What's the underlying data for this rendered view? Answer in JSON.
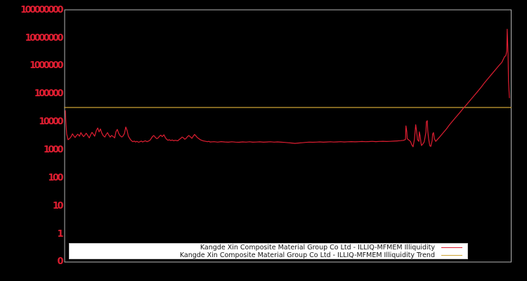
{
  "window": {
    "background": "#000000",
    "frame_color": "#b3b3b3"
  },
  "chart_data": {
    "type": "line",
    "title": "",
    "xlabel": "",
    "ylabel": "",
    "x_axis": {
      "tick_labels": [],
      "note_visible": "no x tick labels shown"
    },
    "y_axis": {
      "scale": "log",
      "color": "#de1e31",
      "tick_labels": [
        "100000000",
        "10000000",
        "1000000",
        "100000",
        "10000",
        "1000",
        "100",
        "10",
        "1",
        "0"
      ],
      "tick_values": [
        100000000,
        10000000,
        1000000,
        100000,
        10000,
        1000,
        100,
        10,
        1,
        0
      ]
    },
    "grid": false,
    "legend_position": "lower center",
    "series": [
      {
        "name": "Kangde Xin Composite Material Group Co Ltd - ILLIQ-MFMEM Illiquidity",
        "color": "#de1e31",
        "points": [
          [
            0,
            26000
          ],
          [
            0.001,
            12000
          ],
          [
            0.002,
            6500
          ],
          [
            0.003,
            3800
          ],
          [
            0.005,
            2800
          ],
          [
            0.006,
            2400
          ],
          [
            0.009,
            2600
          ],
          [
            0.013,
            3100
          ],
          [
            0.016,
            3900
          ],
          [
            0.019,
            3300
          ],
          [
            0.022,
            2900
          ],
          [
            0.025,
            3400
          ],
          [
            0.028,
            3800
          ],
          [
            0.032,
            3200
          ],
          [
            0.035,
            4300
          ],
          [
            0.038,
            3600
          ],
          [
            0.041,
            3100
          ],
          [
            0.044,
            3500
          ],
          [
            0.047,
            4100
          ],
          [
            0.051,
            3300
          ],
          [
            0.054,
            2800
          ],
          [
            0.057,
            3600
          ],
          [
            0.06,
            4400
          ],
          [
            0.063,
            3800
          ],
          [
            0.066,
            3200
          ],
          [
            0.07,
            5200
          ],
          [
            0.073,
            6300
          ],
          [
            0.076,
            4600
          ],
          [
            0.079,
            5800
          ],
          [
            0.082,
            4200
          ],
          [
            0.085,
            3400
          ],
          [
            0.089,
            3000
          ],
          [
            0.092,
            3700
          ],
          [
            0.095,
            4300
          ],
          [
            0.098,
            3500
          ],
          [
            0.101,
            3000
          ],
          [
            0.104,
            3400
          ],
          [
            0.108,
            3100
          ],
          [
            0.111,
            2800
          ],
          [
            0.114,
            4600
          ],
          [
            0.117,
            5600
          ],
          [
            0.12,
            4100
          ],
          [
            0.123,
            3400
          ],
          [
            0.127,
            3000
          ],
          [
            0.13,
            3300
          ],
          [
            0.133,
            4000
          ],
          [
            0.136,
            6800
          ],
          [
            0.139,
            5200
          ],
          [
            0.142,
            3200
          ],
          [
            0.146,
            2500
          ],
          [
            0.149,
            2200
          ],
          [
            0.152,
            2050
          ],
          [
            0.155,
            2150
          ],
          [
            0.158,
            2000
          ],
          [
            0.161,
            2100
          ],
          [
            0.165,
            1950
          ],
          [
            0.168,
            2050
          ],
          [
            0.171,
            2150
          ],
          [
            0.174,
            2000
          ],
          [
            0.177,
            2100
          ],
          [
            0.18,
            2200
          ],
          [
            0.184,
            2050
          ],
          [
            0.187,
            2150
          ],
          [
            0.19,
            2250
          ],
          [
            0.193,
            2600
          ],
          [
            0.196,
            3100
          ],
          [
            0.199,
            3400
          ],
          [
            0.203,
            2900
          ],
          [
            0.206,
            2600
          ],
          [
            0.209,
            2800
          ],
          [
            0.212,
            3200
          ],
          [
            0.215,
            3500
          ],
          [
            0.218,
            3100
          ],
          [
            0.222,
            3600
          ],
          [
            0.225,
            2900
          ],
          [
            0.228,
            2500
          ],
          [
            0.231,
            2300
          ],
          [
            0.234,
            2400
          ],
          [
            0.237,
            2250
          ],
          [
            0.241,
            2350
          ],
          [
            0.244,
            2200
          ],
          [
            0.247,
            2300
          ],
          [
            0.25,
            2250
          ],
          [
            0.253,
            2200
          ],
          [
            0.256,
            2400
          ],
          [
            0.26,
            2700
          ],
          [
            0.263,
            3000
          ],
          [
            0.266,
            2800
          ],
          [
            0.269,
            2500
          ],
          [
            0.272,
            2700
          ],
          [
            0.275,
            3100
          ],
          [
            0.278,
            3400
          ],
          [
            0.282,
            3000
          ],
          [
            0.285,
            2700
          ],
          [
            0.288,
            3200
          ],
          [
            0.291,
            3700
          ],
          [
            0.294,
            3300
          ],
          [
            0.297,
            2900
          ],
          [
            0.301,
            2600
          ],
          [
            0.304,
            2400
          ],
          [
            0.307,
            2300
          ],
          [
            0.31,
            2200
          ],
          [
            0.313,
            2150
          ],
          [
            0.316,
            2100
          ],
          [
            0.32,
            2050
          ],
          [
            0.323,
            2100
          ],
          [
            0.326,
            2000
          ],
          [
            0.335,
            2050
          ],
          [
            0.343,
            1980
          ],
          [
            0.351,
            2060
          ],
          [
            0.359,
            2000
          ],
          [
            0.367,
            1960
          ],
          [
            0.375,
            2030
          ],
          [
            0.383,
            1980
          ],
          [
            0.391,
            1950
          ],
          [
            0.399,
            2010
          ],
          [
            0.407,
            1980
          ],
          [
            0.415,
            2030
          ],
          [
            0.422,
            1960
          ],
          [
            0.43,
            1990
          ],
          [
            0.438,
            2020
          ],
          [
            0.446,
            1970
          ],
          [
            0.454,
            2000
          ],
          [
            0.462,
            2030
          ],
          [
            0.47,
            1980
          ],
          [
            0.478,
            2010
          ],
          [
            0.486,
            1960
          ],
          [
            0.494,
            1930
          ],
          [
            0.502,
            1880
          ],
          [
            0.51,
            1830
          ],
          [
            0.517,
            1780
          ],
          [
            0.525,
            1830
          ],
          [
            0.533,
            1880
          ],
          [
            0.541,
            1930
          ],
          [
            0.549,
            1980
          ],
          [
            0.557,
            1950
          ],
          [
            0.565,
            1980
          ],
          [
            0.573,
            2010
          ],
          [
            0.581,
            1970
          ],
          [
            0.589,
            2000
          ],
          [
            0.597,
            2030
          ],
          [
            0.604,
            1990
          ],
          [
            0.612,
            2010
          ],
          [
            0.62,
            2040
          ],
          [
            0.628,
            2000
          ],
          [
            0.636,
            2030
          ],
          [
            0.644,
            2060
          ],
          [
            0.652,
            2020
          ],
          [
            0.66,
            2050
          ],
          [
            0.668,
            2080
          ],
          [
            0.676,
            2040
          ],
          [
            0.684,
            2070
          ],
          [
            0.691,
            2100
          ],
          [
            0.699,
            2060
          ],
          [
            0.707,
            2090
          ],
          [
            0.715,
            2120
          ],
          [
            0.723,
            2080
          ],
          [
            0.731,
            2110
          ],
          [
            0.739,
            2140
          ],
          [
            0.747,
            2180
          ],
          [
            0.755,
            2230
          ],
          [
            0.761,
            2280
          ],
          [
            0.766,
            2450
          ],
          [
            0.767,
            7500
          ],
          [
            0.769,
            4500
          ],
          [
            0.77,
            2600
          ],
          [
            0.774,
            2300
          ],
          [
            0.777,
            2100
          ],
          [
            0.78,
            1600
          ],
          [
            0.783,
            1350
          ],
          [
            0.786,
            2500
          ],
          [
            0.788,
            5500
          ],
          [
            0.789,
            8200
          ],
          [
            0.791,
            4800
          ],
          [
            0.793,
            2400
          ],
          [
            0.796,
            2100
          ],
          [
            0.797,
            4600
          ],
          [
            0.799,
            3200
          ],
          [
            0.801,
            1800
          ],
          [
            0.802,
            1500
          ],
          [
            0.805,
            1700
          ],
          [
            0.808,
            2000
          ],
          [
            0.812,
            4500
          ],
          [
            0.813,
            10500
          ],
          [
            0.815,
            11500
          ],
          [
            0.816,
            5200
          ],
          [
            0.818,
            2600
          ],
          [
            0.82,
            1700
          ],
          [
            0.821,
            1450
          ],
          [
            0.823,
            1400
          ],
          [
            0.826,
            2200
          ],
          [
            0.827,
            3800
          ],
          [
            0.829,
            4300
          ],
          [
            0.831,
            2600
          ],
          [
            0.834,
            2100
          ],
          [
            0.842,
            2900
          ],
          [
            0.85,
            4100
          ],
          [
            0.858,
            5800
          ],
          [
            0.865,
            8200
          ],
          [
            0.873,
            11600
          ],
          [
            0.881,
            16400
          ],
          [
            0.889,
            23000
          ],
          [
            0.897,
            33000
          ],
          [
            0.905,
            46000
          ],
          [
            0.913,
            65000
          ],
          [
            0.921,
            92000
          ],
          [
            0.929,
            130000
          ],
          [
            0.937,
            185000
          ],
          [
            0.944,
            260000
          ],
          [
            0.952,
            370000
          ],
          [
            0.96,
            520000
          ],
          [
            0.968,
            740000
          ],
          [
            0.976,
            1050000
          ],
          [
            0.983,
            1400000
          ],
          [
            0.989,
            2200000
          ],
          [
            0.992,
            2400000
          ],
          [
            0.994,
            3500000
          ],
          [
            0.995,
            21000000
          ],
          [
            0.997,
            2500000
          ],
          [
            0.998,
            300000
          ],
          [
            1,
            75000
          ]
        ]
      },
      {
        "name": "Kangde Xin Composite Material Group Co Ltd - ILLIQ-MFMEM Illiquidity Trend",
        "color": "#cda434",
        "points": [
          [
            -0.002,
            34000
          ],
          [
            1.004,
            34000
          ]
        ]
      }
    ]
  },
  "legend": {
    "items": [
      {
        "label": "Kangde Xin Composite Material Group Co Ltd - ILLIQ-MFMEM Illiquidity",
        "color": "#de1e31"
      },
      {
        "label": "Kangde Xin Composite Material Group Co Ltd - ILLIQ-MFMEM Illiquidity Trend",
        "color": "#cda434"
      }
    ]
  }
}
